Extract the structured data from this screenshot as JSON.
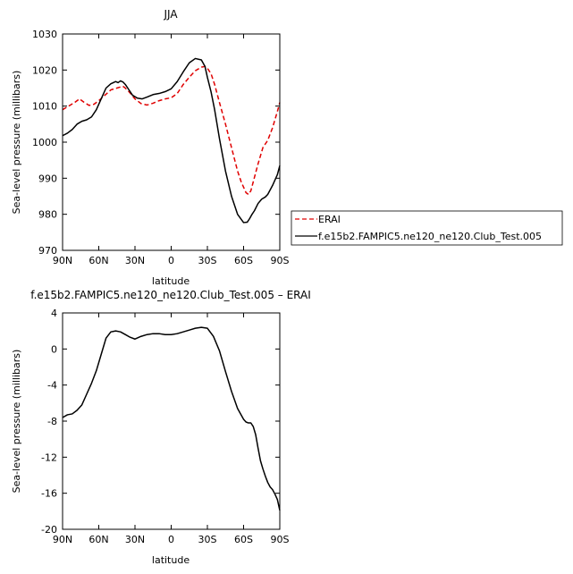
{
  "chart_data": [
    {
      "type": "line",
      "title": "JJA",
      "xlabel": "latitude",
      "ylabel": "Sea-level pressure (millibars)",
      "xlim": [
        90,
        -90
      ],
      "ylim": [
        970,
        1030
      ],
      "x_ticks": [
        {
          "value": 90,
          "label": "90N"
        },
        {
          "value": 60,
          "label": "60N"
        },
        {
          "value": 30,
          "label": "30N"
        },
        {
          "value": 0,
          "label": "0"
        },
        {
          "value": -30,
          "label": "30S"
        },
        {
          "value": -60,
          "label": "60S"
        },
        {
          "value": -90,
          "label": "90S"
        }
      ],
      "y_ticks": [
        970,
        980,
        990,
        1000,
        1010,
        1020,
        1030
      ],
      "legend_position": "right",
      "series": [
        {
          "name": "ERAI",
          "color": "#e00000",
          "dash": "dashed",
          "x": [
            90,
            85,
            80,
            76,
            72,
            68,
            64,
            60,
            55,
            50,
            45,
            40,
            38,
            35,
            30,
            25,
            20,
            15,
            10,
            5,
            0,
            -5,
            -10,
            -15,
            -20,
            -25,
            -28,
            -30,
            -33,
            -36,
            -40,
            -45,
            -50,
            -55,
            -58,
            -62,
            -64,
            -66,
            -68,
            -72,
            -76,
            -78,
            -80,
            -84,
            -88,
            -90
          ],
          "y": [
            1009,
            1010,
            1011,
            1012,
            1011,
            1010.2,
            1010.5,
            1011.5,
            1013,
            1014.5,
            1015,
            1015.5,
            1015,
            1014,
            1012,
            1010.7,
            1010.3,
            1010.8,
            1011.5,
            1012,
            1012.3,
            1013.5,
            1016,
            1018,
            1019.8,
            1020.8,
            1021,
            1020.5,
            1019,
            1016,
            1011,
            1005,
            998.5,
            992,
            989,
            986,
            985.5,
            986.5,
            989,
            994,
            998.5,
            999.5,
            1000.5,
            1004,
            1008.5,
            1011
          ]
        },
        {
          "name": "f.e15b2.FAMPIC5.ne120_ne120.Club_Test.005",
          "color": "#000000",
          "dash": "solid",
          "x": [
            90,
            86,
            82,
            78,
            74,
            70,
            66,
            62,
            58,
            54,
            50,
            46,
            44,
            42,
            40,
            38,
            35,
            32,
            28,
            24,
            20,
            15,
            10,
            5,
            0,
            -5,
            -10,
            -15,
            -20,
            -25,
            -28,
            -30,
            -33,
            -36,
            -40,
            -45,
            -50,
            -55,
            -60,
            -63,
            -65,
            -67,
            -69,
            -72,
            -75,
            -78,
            -80,
            -84,
            -88,
            -90
          ],
          "y": [
            1001.8,
            1002.5,
            1003.5,
            1005,
            1005.8,
            1006.2,
            1007,
            1009,
            1012,
            1015,
            1016.2,
            1016.8,
            1016.5,
            1017,
            1016.7,
            1016,
            1014.5,
            1013,
            1012.2,
            1012,
            1012.5,
            1013.2,
            1013.5,
            1014,
            1014.8,
            1016.8,
            1019.5,
            1022,
            1023.2,
            1022.8,
            1021,
            1018,
            1014,
            1009,
            1001,
            992,
            985,
            980,
            977.7,
            977.8,
            978.8,
            980,
            981,
            983,
            984.2,
            984.8,
            985.5,
            988,
            991,
            993.5
          ]
        }
      ]
    },
    {
      "type": "line",
      "title": "f.e15b2.FAMPIC5.ne120_ne120.Club_Test.005 – ERAI",
      "xlabel": "latitude",
      "ylabel": "Sea-level pressure (millibars)",
      "xlim": [
        90,
        -90
      ],
      "ylim": [
        -20,
        4
      ],
      "x_ticks": [
        {
          "value": 90,
          "label": "90N"
        },
        {
          "value": 60,
          "label": "60N"
        },
        {
          "value": 30,
          "label": "30N"
        },
        {
          "value": 0,
          "label": "0"
        },
        {
          "value": -30,
          "label": "30S"
        },
        {
          "value": -60,
          "label": "60S"
        },
        {
          "value": -90,
          "label": "90S"
        }
      ],
      "y_ticks": [
        -20,
        -16,
        -12,
        -8,
        -4,
        0,
        4
      ],
      "series": [
        {
          "color": "#000000",
          "dash": "solid",
          "x": [
            90,
            86,
            82,
            78,
            74,
            70,
            66,
            62,
            58,
            54,
            50,
            46,
            42,
            38,
            34,
            30,
            25,
            20,
            15,
            10,
            5,
            0,
            -5,
            -10,
            -15,
            -20,
            -25,
            -30,
            -35,
            -40,
            -45,
            -50,
            -55,
            -60,
            -62,
            -64,
            -66,
            -68,
            -70,
            -72,
            -74,
            -76,
            -78,
            -80,
            -82,
            -84,
            -86,
            -88,
            -90
          ],
          "y": [
            -7.6,
            -7.3,
            -7.2,
            -6.8,
            -6.2,
            -5.0,
            -3.8,
            -2.4,
            -0.6,
            1.2,
            1.9,
            2.0,
            1.9,
            1.6,
            1.3,
            1.1,
            1.4,
            1.6,
            1.7,
            1.7,
            1.6,
            1.6,
            1.7,
            1.9,
            2.1,
            2.3,
            2.4,
            2.3,
            1.4,
            -0.2,
            -2.5,
            -4.7,
            -6.6,
            -7.8,
            -8.1,
            -8.2,
            -8.2,
            -8.6,
            -9.5,
            -11.0,
            -12.4,
            -13.3,
            -14.1,
            -14.8,
            -15.3,
            -15.6,
            -16.1,
            -16.7,
            -17.9
          ]
        }
      ]
    }
  ]
}
